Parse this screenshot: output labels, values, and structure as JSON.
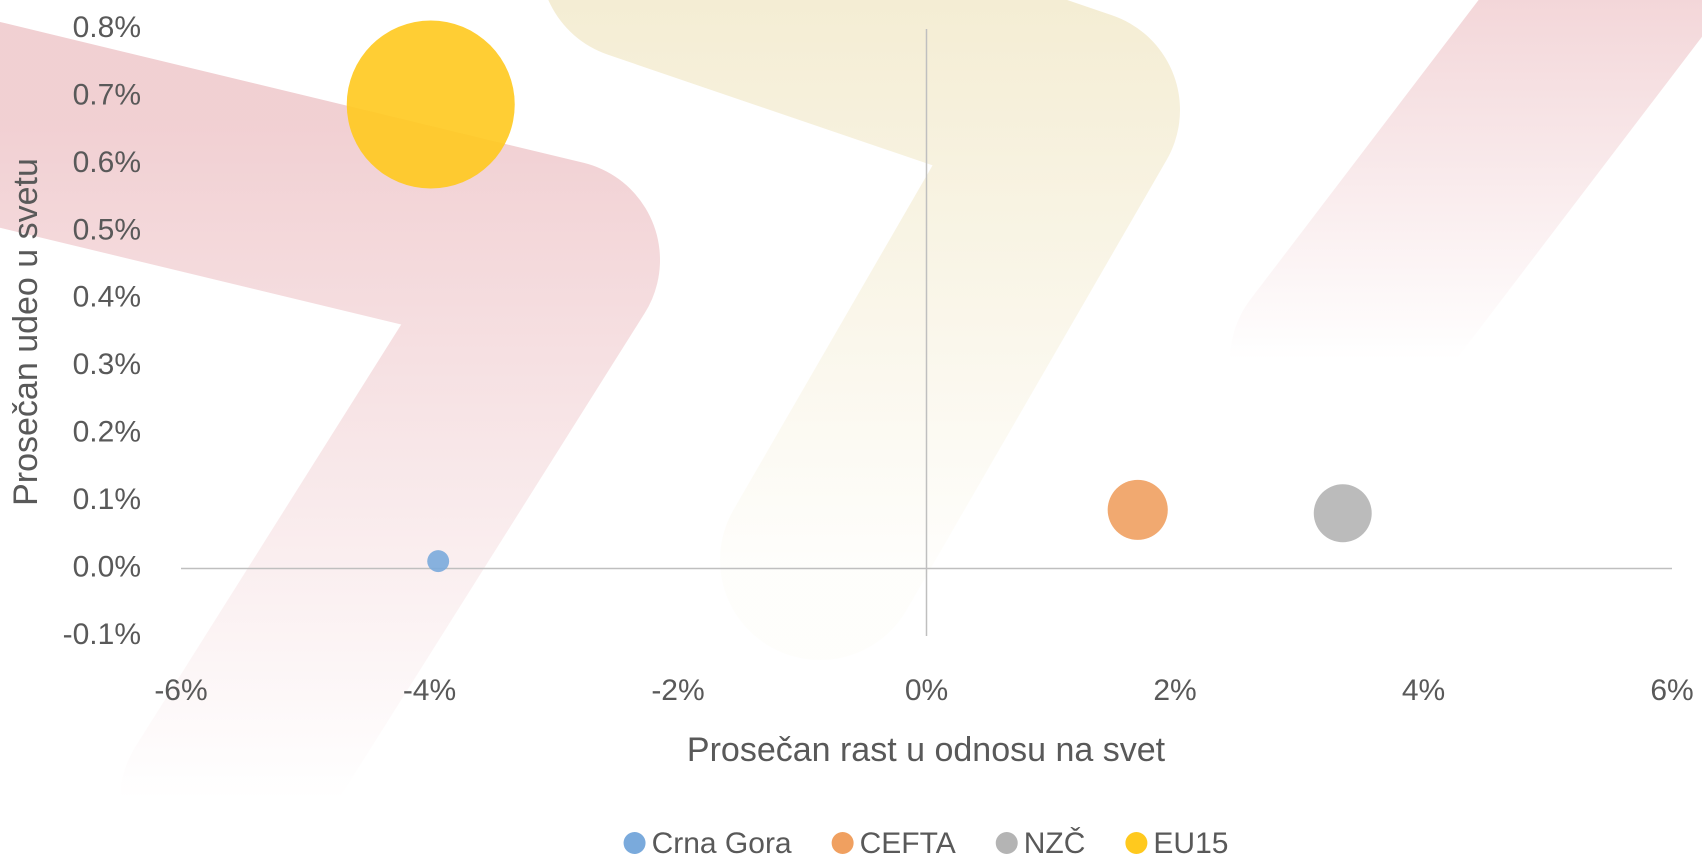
{
  "chart_data": {
    "type": "bubble",
    "x_label": "Prosečan rast u odnosu na svet",
    "y_label": "Prosečan udeo u svetu",
    "xlim": [
      -6,
      6
    ],
    "xticks": [
      {
        "value": -6,
        "label": "-6%"
      },
      {
        "value": -4,
        "label": "-4%"
      },
      {
        "value": -2,
        "label": "-2%"
      },
      {
        "value": 0,
        "label": "0%"
      },
      {
        "value": 2,
        "label": "2%"
      },
      {
        "value": 4,
        "label": "4%"
      },
      {
        "value": 6,
        "label": "6%"
      }
    ],
    "ylim": [
      -0.1,
      0.8
    ],
    "yticks": [
      {
        "value": -0.1,
        "label": "-0.1%"
      },
      {
        "value": 0,
        "label": "0.0%"
      },
      {
        "value": 0.1,
        "label": "0.1%"
      },
      {
        "value": 0.2,
        "label": "0.2%"
      },
      {
        "value": 0.3,
        "label": "0.3%"
      },
      {
        "value": 0.4,
        "label": "0.4%"
      },
      {
        "value": 0.5,
        "label": "0.5%"
      },
      {
        "value": 0.6,
        "label": "0.6%"
      },
      {
        "value": 0.7,
        "label": "0.7%"
      },
      {
        "value": 0.8,
        "label": "0.8%"
      }
    ],
    "legend": "bottom",
    "series": [
      {
        "name": "Crna Gora",
        "color": "#7aaadc",
        "x": [
          -3.93
        ],
        "values": [
          0.011
        ],
        "sizes": [
          1.7
        ]
      },
      {
        "name": "CEFTA",
        "color": "#f0a060",
        "x": [
          1.7
        ],
        "values": [
          0.087
        ],
        "sizes": [
          12.8
        ]
      },
      {
        "name": "NZČ",
        "color": "#b4b4b4",
        "x": [
          3.35
        ],
        "values": [
          0.082
        ],
        "sizes": [
          11.9
        ]
      },
      {
        "name": "EU15",
        "color": "#ffc91e",
        "x": [
          -3.99
        ],
        "values": [
          0.688
        ],
        "sizes": [
          100
        ]
      }
    ]
  }
}
